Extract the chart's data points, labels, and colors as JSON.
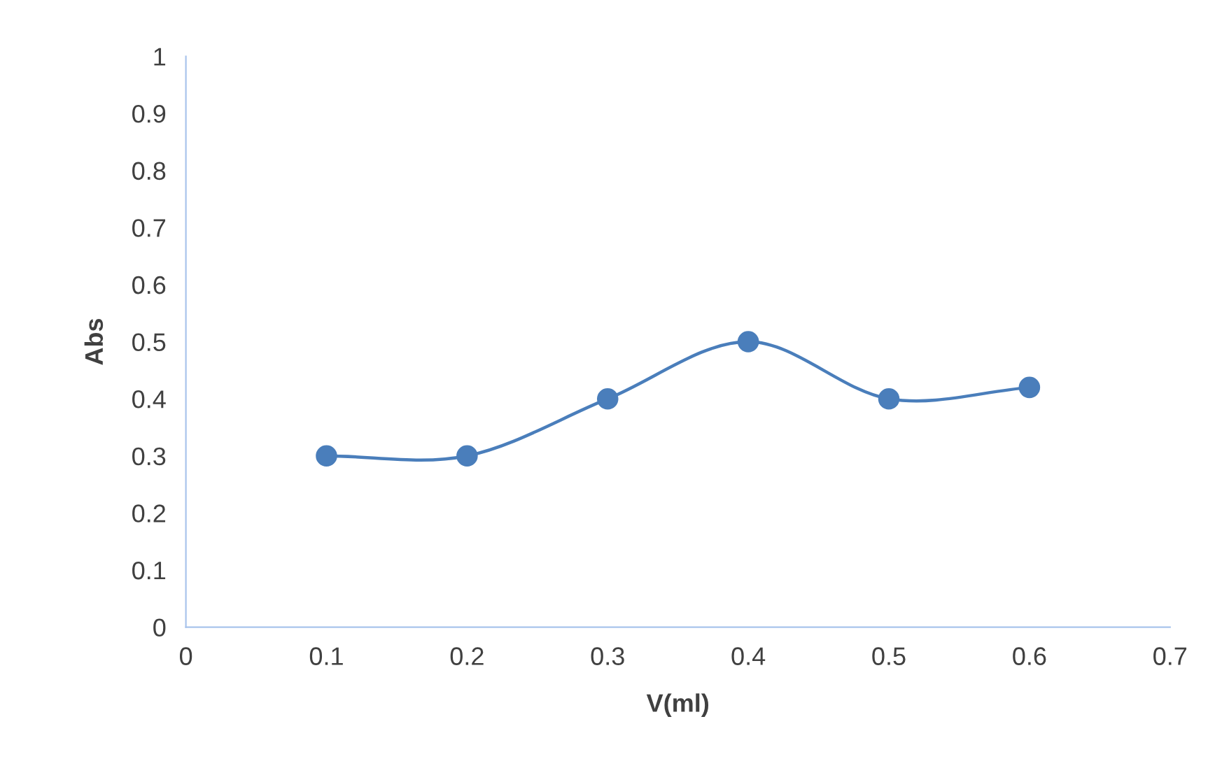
{
  "chart_data": {
    "type": "line",
    "xlabel": "V(ml)",
    "ylabel": "Abs",
    "x": [
      0.1,
      0.2,
      0.3,
      0.4,
      0.5,
      0.6
    ],
    "series": [
      {
        "color": "#4a7ebb",
        "values": [
          0.3,
          0.3,
          0.4,
          0.5,
          0.4,
          0.42
        ]
      }
    ],
    "xlim": [
      0,
      0.7
    ],
    "xticks": [
      0,
      0.1,
      0.2,
      0.3,
      0.4,
      0.5,
      0.6,
      0.7
    ],
    "ylim": [
      0,
      1
    ],
    "yticks": [
      0,
      0.1,
      0.2,
      0.3,
      0.4,
      0.5,
      0.6,
      0.7,
      0.8,
      0.9,
      1
    ],
    "marker": "circle",
    "line_style": "solid",
    "grid": false
  }
}
